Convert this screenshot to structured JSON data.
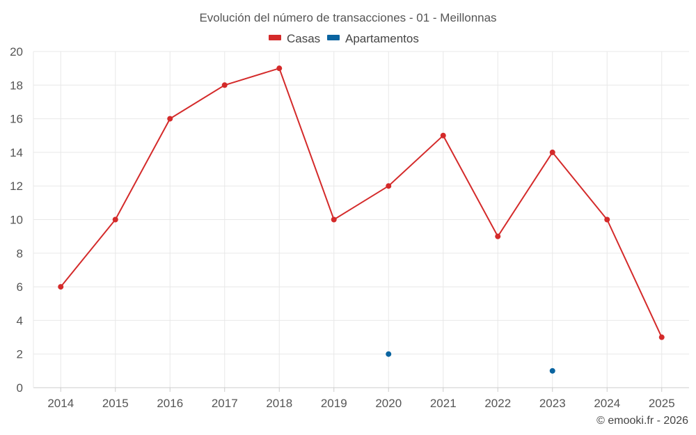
{
  "chart_data": {
    "type": "line",
    "title": "Evolución del número de transacciones - 01 - Meillonnas",
    "categories": [
      "2014",
      "2015",
      "2016",
      "2017",
      "2018",
      "2019",
      "2020",
      "2021",
      "2022",
      "2023",
      "2024",
      "2025"
    ],
    "series": [
      {
        "name": "Casas",
        "color": "#d42a2a",
        "values": [
          6,
          10,
          16,
          18,
          19,
          10,
          12,
          15,
          9,
          14,
          10,
          3
        ]
      },
      {
        "name": "Apartamentos",
        "color": "#0a64a0",
        "values": [
          null,
          null,
          null,
          null,
          null,
          null,
          2,
          null,
          null,
          1,
          null,
          null
        ]
      }
    ],
    "xlabel": "",
    "ylabel": "",
    "ylim": [
      0,
      20
    ],
    "yticks": [
      "0",
      "2",
      "4",
      "6",
      "8",
      "10",
      "12",
      "14",
      "16",
      "18",
      "20"
    ],
    "grid": true,
    "legend_position": "top-center",
    "credit": "© emooki.fr - 2026"
  }
}
